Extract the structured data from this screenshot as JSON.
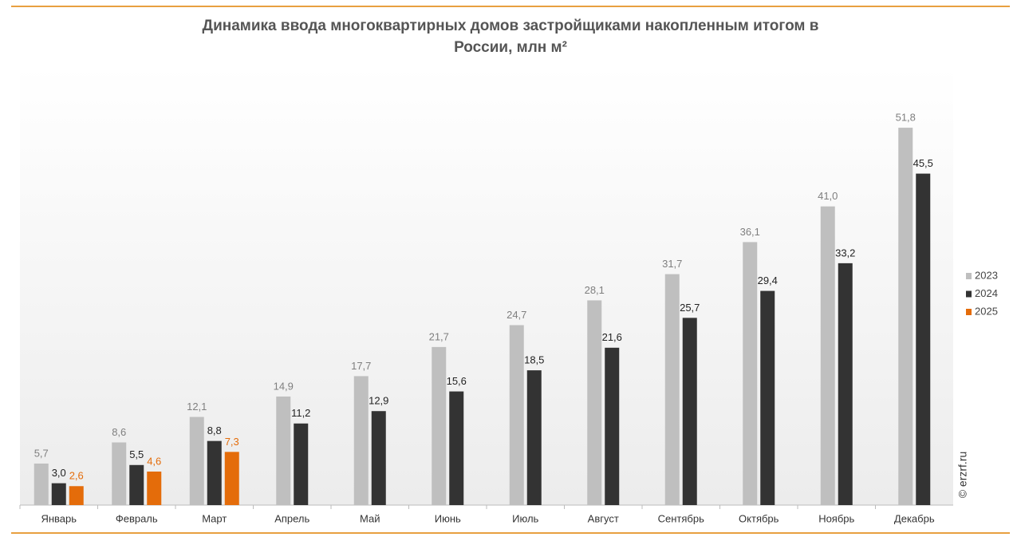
{
  "chart_data": {
    "type": "bar",
    "title": "Динамика ввода многоквартирных домов застройщиками накопленным итогом в",
    "subtitle": "России, млн м²",
    "watermark": "© erzrf.ru",
    "categories": [
      "Январь",
      "Февраль",
      "Март",
      "Апрель",
      "Май",
      "Июнь",
      "Июль",
      "Август",
      "Сентябрь",
      "Октябрь",
      "Ноябрь",
      "Декабрь"
    ],
    "series": [
      {
        "name": "2023",
        "color": "#bfbfbf",
        "label_color": "#7f7f7f",
        "values": [
          5.7,
          8.6,
          12.1,
          14.9,
          17.7,
          21.7,
          24.7,
          28.1,
          31.7,
          36.1,
          41.0,
          51.8
        ],
        "value_labels": [
          "5,7",
          "8,6",
          "12,1",
          "14,9",
          "17,7",
          "21,7",
          "24,7",
          "28,1",
          "31,7",
          "36,1",
          "41,0",
          "51,8"
        ]
      },
      {
        "name": "2024",
        "color": "#333333",
        "label_color": "#222222",
        "values": [
          3.0,
          5.5,
          8.8,
          11.2,
          12.9,
          15.6,
          18.5,
          21.6,
          25.7,
          29.4,
          33.2,
          45.5
        ],
        "value_labels": [
          "3,0",
          "5,5",
          "8,8",
          "11,2",
          "12,9",
          "15,6",
          "18,5",
          "21,6",
          "25,7",
          "29,4",
          "33,2",
          "45,5"
        ]
      },
      {
        "name": "2025",
        "color": "#e46c0a",
        "label_color": "#e46c0a",
        "values": [
          2.6,
          4.6,
          7.3,
          null,
          null,
          null,
          null,
          null,
          null,
          null,
          null,
          null
        ],
        "value_labels": [
          "2,6",
          "4,6",
          "7,3",
          null,
          null,
          null,
          null,
          null,
          null,
          null,
          null,
          null
        ]
      }
    ],
    "legend": "right"
  }
}
